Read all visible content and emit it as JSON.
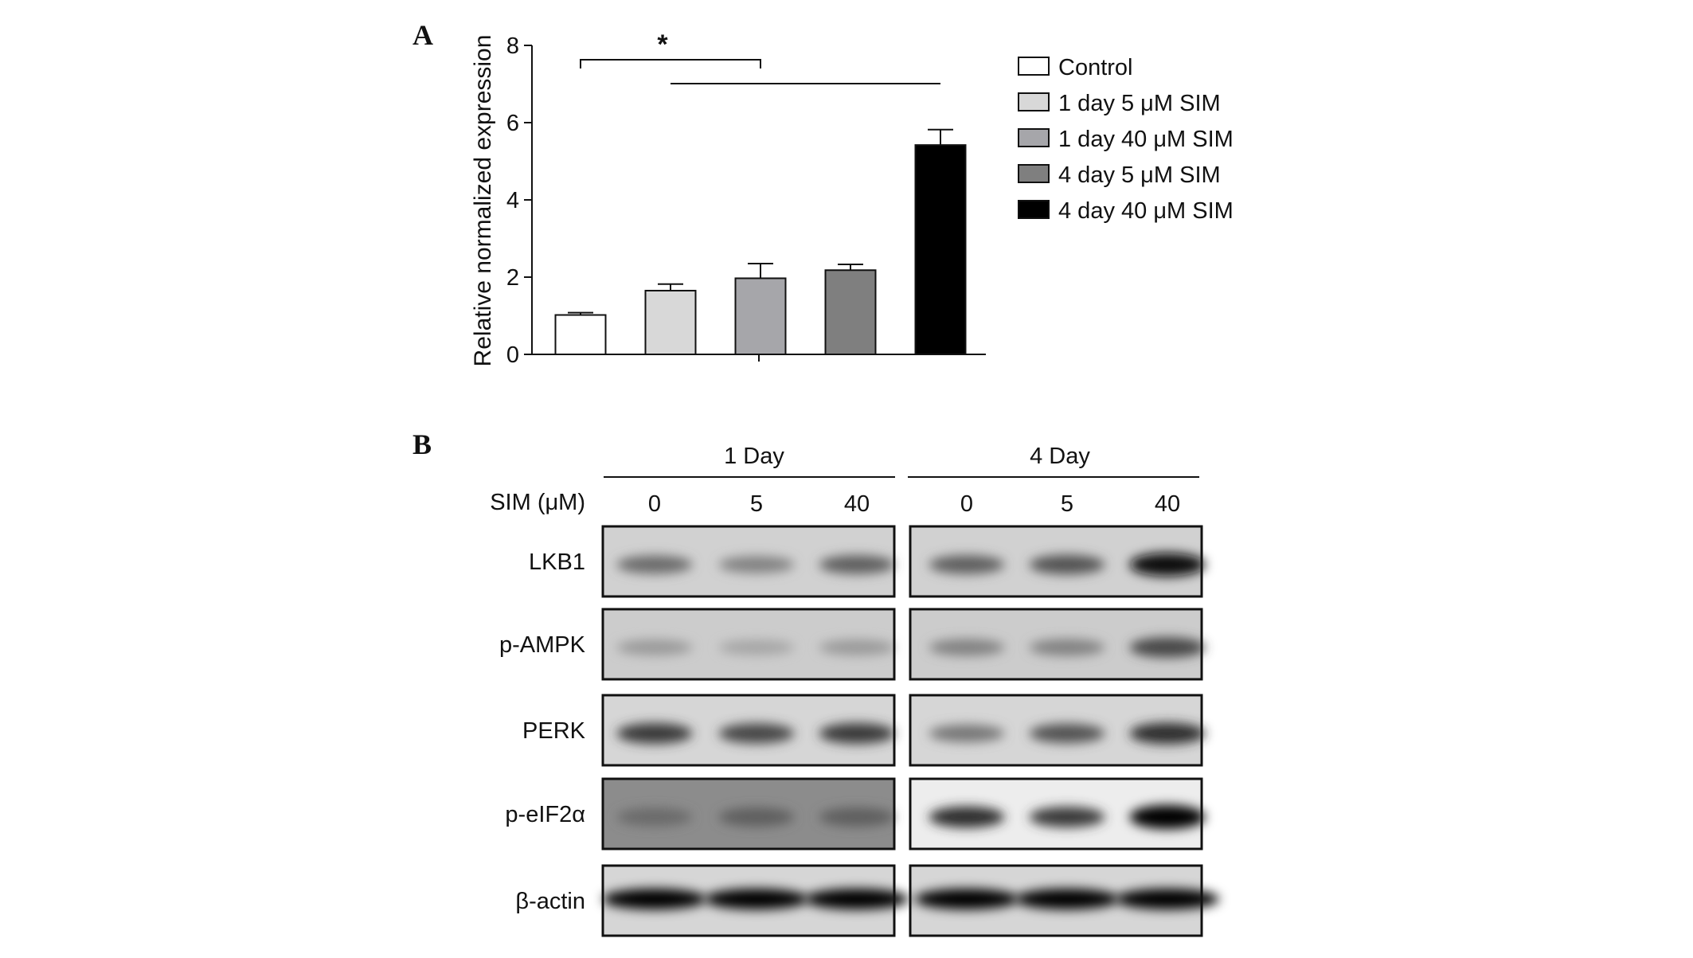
{
  "panel_a_label": "A",
  "panel_b_label": "B",
  "chart_data": {
    "type": "bar",
    "title": "",
    "xlabel": "",
    "ylabel": "Relative normalized expression",
    "ylim": [
      0,
      8
    ],
    "yticks": [
      "0",
      "2",
      "4",
      "6",
      "8"
    ],
    "categories": [
      "Control",
      "1 day 5 μM SIM",
      "1 day 40 μM SIM",
      "4 day 5 μM SIM",
      "4 day 40 μM SIM"
    ],
    "values": [
      1.02,
      1.65,
      1.97,
      2.18,
      5.42
    ],
    "errors": [
      0.06,
      0.17,
      0.38,
      0.15,
      0.4
    ],
    "colors": [
      "#ffffff",
      "#d8d8d8",
      "#a6a6aa",
      "#7f7f7f",
      "#000000"
    ],
    "legend_position": "right",
    "significance": [
      {
        "from": 0,
        "to": 2,
        "label": "*"
      },
      {
        "from": 1,
        "to": 4,
        "label": ""
      }
    ]
  },
  "blot": {
    "group_labels": [
      "1 Day",
      "4 Day"
    ],
    "condition_label": "SIM (μM)",
    "lanes": [
      "0",
      "5",
      "40",
      "0",
      "5",
      "40"
    ],
    "rows": [
      {
        "label": "LKB1",
        "intensity": [
          0.55,
          0.45,
          0.6,
          0.6,
          0.65,
          0.95
        ]
      },
      {
        "label": "p-AMPK",
        "intensity": [
          0.35,
          0.3,
          0.35,
          0.45,
          0.45,
          0.7
        ]
      },
      {
        "label": "PERK",
        "intensity": [
          0.75,
          0.7,
          0.75,
          0.5,
          0.65,
          0.8
        ]
      },
      {
        "label": "p-eIF2α",
        "intensity": [
          0.55,
          0.6,
          0.6,
          0.8,
          0.75,
          1.0
        ]
      },
      {
        "label": "β-actin",
        "intensity": [
          1.0,
          1.0,
          1.0,
          1.0,
          1.0,
          1.0
        ]
      }
    ]
  }
}
